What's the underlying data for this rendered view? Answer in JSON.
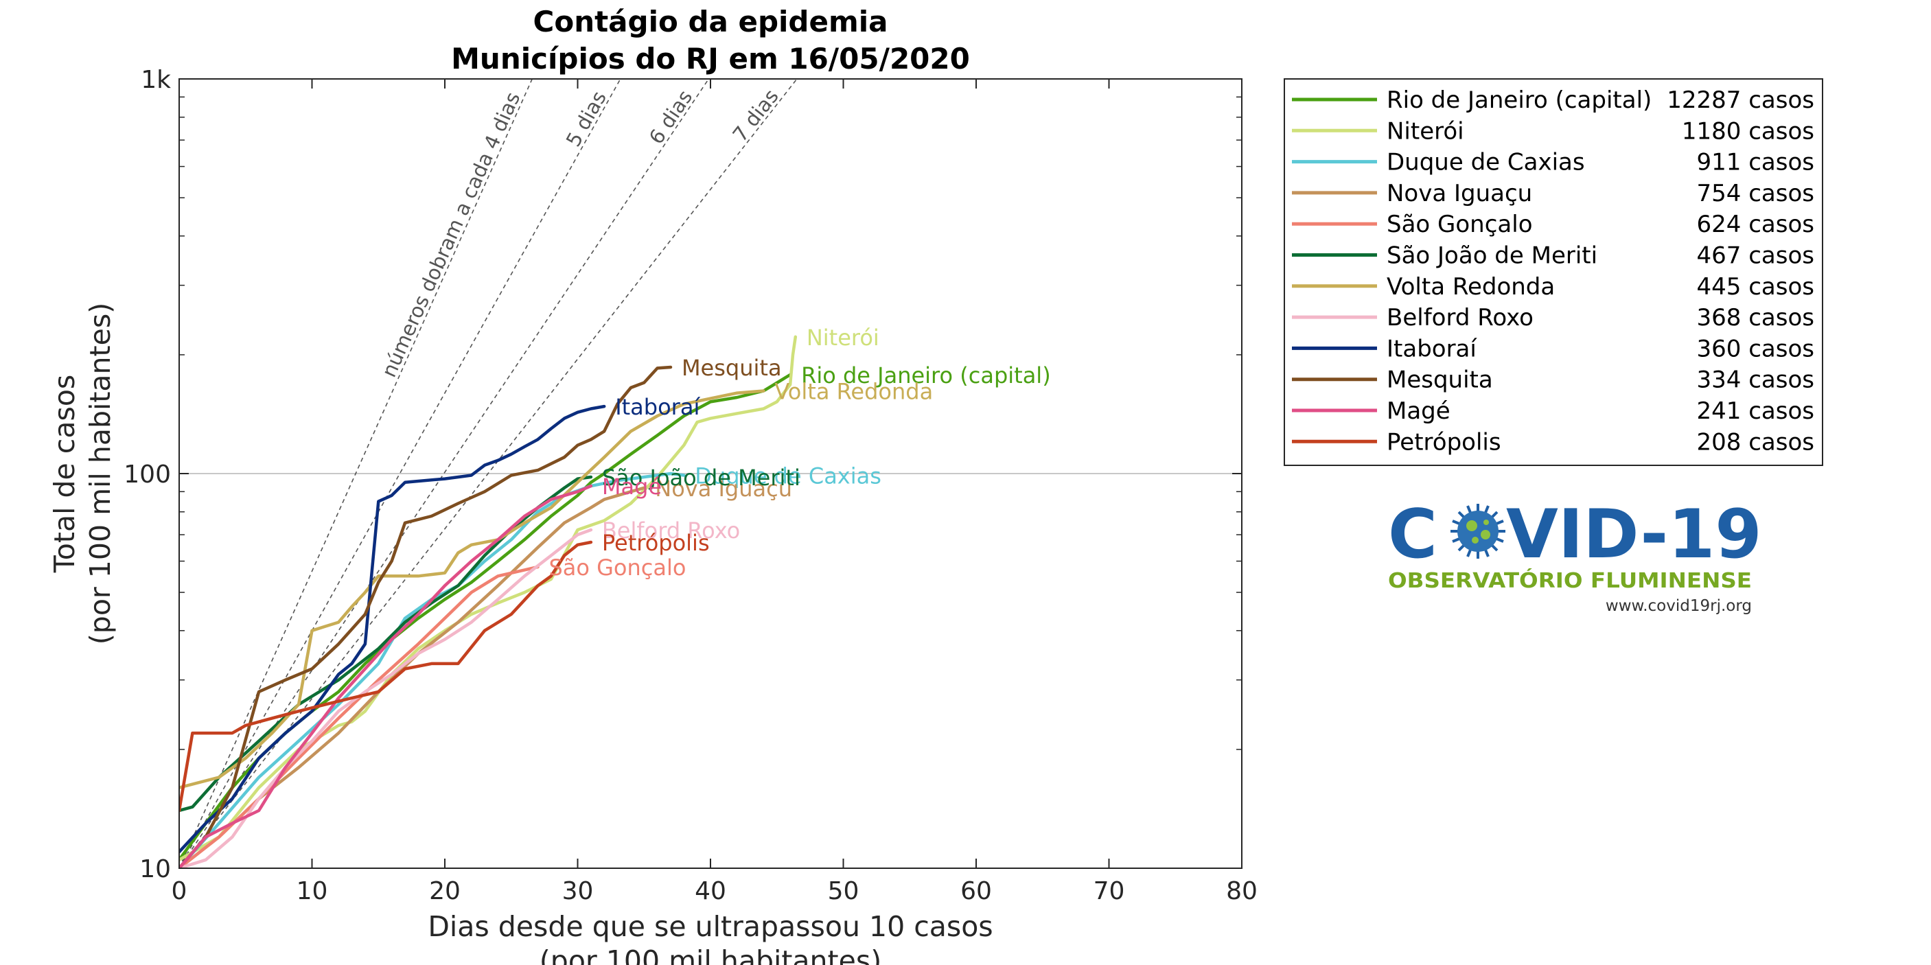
{
  "chart_data": {
    "type": "line",
    "title": [
      "Contágio da epidemia",
      "Municípios do RJ em 16/05/2020"
    ],
    "xlabel": [
      "Dias desde que se ultrapassou 10 casos",
      "(por 100 mil habitantes)"
    ],
    "ylabel": [
      "Total de casos",
      "(por 100 mil habitantes)"
    ],
    "xlim": [
      0,
      80
    ],
    "ylim": [
      10,
      1000
    ],
    "yscale": "log",
    "xticks": [
      0,
      10,
      20,
      30,
      40,
      50,
      60,
      70,
      80
    ],
    "yticks": [
      {
        "value": 10,
        "label": "10"
      },
      {
        "value": 100,
        "label": "100"
      },
      {
        "value": 1000,
        "label": "1k"
      }
    ],
    "grid": "horizontal line at 100",
    "legend_position": "outside-right",
    "doubling_lines": [
      {
        "days": 4,
        "label": "números dobram a cada 4 dias"
      },
      {
        "days": 5,
        "label": "5 dias"
      },
      {
        "days": 6,
        "label": "6 dias"
      },
      {
        "days": 7,
        "label": "7 dias"
      }
    ],
    "series": [
      {
        "name": "Rio de Janeiro (capital)",
        "cases": "12287 casos",
        "color": "#4aa012",
        "end_label": "Rio de Janeiro (capital)",
        "points": [
          [
            0,
            10.5
          ],
          [
            2,
            13
          ],
          [
            4,
            16
          ],
          [
            6,
            19
          ],
          [
            8,
            22
          ],
          [
            10,
            25
          ],
          [
            12,
            28
          ],
          [
            14,
            33
          ],
          [
            16,
            38
          ],
          [
            18,
            43
          ],
          [
            20,
            48
          ],
          [
            22,
            53
          ],
          [
            24,
            60
          ],
          [
            26,
            68
          ],
          [
            28,
            78
          ],
          [
            30,
            88
          ],
          [
            31,
            95
          ],
          [
            32,
            100
          ],
          [
            34,
            112
          ],
          [
            36,
            125
          ],
          [
            38,
            140
          ],
          [
            40,
            152
          ],
          [
            42,
            156
          ],
          [
            44,
            162
          ],
          [
            46,
            178
          ]
        ]
      },
      {
        "name": "Niterói",
        "cases": "1180 casos",
        "color": "#cfe07a",
        "end_label": "Niterói",
        "points": [
          [
            0,
            10.5
          ],
          [
            3,
            12
          ],
          [
            6,
            16
          ],
          [
            9,
            20
          ],
          [
            12,
            23
          ],
          [
            13,
            23.5
          ],
          [
            14,
            25
          ],
          [
            16,
            31
          ],
          [
            18,
            36
          ],
          [
            20,
            40
          ],
          [
            22,
            44
          ],
          [
            24,
            47
          ],
          [
            26,
            50
          ],
          [
            28,
            54
          ],
          [
            30,
            72
          ],
          [
            32,
            76
          ],
          [
            34,
            84
          ],
          [
            36,
            98
          ],
          [
            38,
            118
          ],
          [
            39,
            135
          ],
          [
            40,
            138
          ],
          [
            42,
            142
          ],
          [
            44,
            146
          ],
          [
            45,
            152
          ],
          [
            46,
            168
          ],
          [
            46.2,
            200
          ],
          [
            46.4,
            222
          ]
        ]
      },
      {
        "name": "Duque de Caxias",
        "cases": "911 casos",
        "color": "#5bc8d6",
        "end_label": "Duque de Caxias",
        "points": [
          [
            0,
            10
          ],
          [
            3,
            13
          ],
          [
            6,
            17
          ],
          [
            9,
            21
          ],
          [
            12,
            26
          ],
          [
            15,
            33
          ],
          [
            17,
            43
          ],
          [
            19,
            48
          ],
          [
            21,
            52
          ],
          [
            23,
            60
          ],
          [
            25,
            68
          ],
          [
            27,
            80
          ],
          [
            29,
            88
          ],
          [
            31,
            93
          ],
          [
            33,
            96
          ],
          [
            35,
            98
          ],
          [
            37,
            100
          ],
          [
            38,
            99
          ]
        ]
      },
      {
        "name": "Nova Iguaçu",
        "cases": "754 casos",
        "color": "#c4925a",
        "end_label": "Nova Iguaçu",
        "points": [
          [
            0,
            10
          ],
          [
            3,
            12
          ],
          [
            6,
            15
          ],
          [
            9,
            18
          ],
          [
            12,
            22
          ],
          [
            15,
            28
          ],
          [
            18,
            35
          ],
          [
            21,
            42
          ],
          [
            24,
            52
          ],
          [
            27,
            65
          ],
          [
            29,
            75
          ],
          [
            31,
            82
          ],
          [
            32,
            86
          ],
          [
            34,
            90
          ],
          [
            35,
            92
          ]
        ]
      },
      {
        "name": "São Gonçalo",
        "cases": "624 casos",
        "color": "#f08070",
        "end_label": "São Gonçalo",
        "points": [
          [
            0,
            10
          ],
          [
            3,
            12
          ],
          [
            6,
            15
          ],
          [
            9,
            19
          ],
          [
            12,
            24
          ],
          [
            15,
            30
          ],
          [
            18,
            37
          ],
          [
            20,
            43
          ],
          [
            22,
            50
          ],
          [
            24,
            55
          ],
          [
            26,
            57
          ],
          [
            27,
            58
          ]
        ]
      },
      {
        "name": "São João de Meriti",
        "cases": "467 casos",
        "color": "#0d6e35",
        "end_label": "São João de Meriti",
        "points": [
          [
            0,
            14
          ],
          [
            1,
            14.3
          ],
          [
            3,
            17
          ],
          [
            6,
            21
          ],
          [
            9,
            26
          ],
          [
            12,
            30
          ],
          [
            15,
            36
          ],
          [
            17,
            42
          ],
          [
            19,
            47
          ],
          [
            21,
            52
          ],
          [
            23,
            62
          ],
          [
            25,
            72
          ],
          [
            27,
            82
          ],
          [
            29,
            92
          ],
          [
            30,
            97
          ],
          [
            31,
            98
          ]
        ]
      },
      {
        "name": "Volta Redonda",
        "cases": "445 casos",
        "color": "#c8ad55",
        "end_label": "Volta Redonda",
        "points": [
          [
            0,
            16
          ],
          [
            3,
            17
          ],
          [
            5,
            19
          ],
          [
            7,
            22
          ],
          [
            9,
            26
          ],
          [
            10,
            40
          ],
          [
            11,
            41
          ],
          [
            12,
            42
          ],
          [
            13,
            46
          ],
          [
            14,
            50
          ],
          [
            15,
            55
          ],
          [
            18,
            55
          ],
          [
            20,
            56
          ],
          [
            21,
            63
          ],
          [
            22,
            66
          ],
          [
            24,
            68
          ],
          [
            26,
            75
          ],
          [
            28,
            82
          ],
          [
            30,
            95
          ],
          [
            32,
            110
          ],
          [
            34,
            128
          ],
          [
            36,
            140
          ],
          [
            38,
            150
          ],
          [
            40,
            155
          ],
          [
            42,
            160
          ],
          [
            44,
            162
          ]
        ]
      },
      {
        "name": "Belford Roxo",
        "cases": "368 casos",
        "color": "#f3b6c8",
        "end_label": "Belford Roxo",
        "points": [
          [
            0,
            10
          ],
          [
            2,
            10.5
          ],
          [
            4,
            12
          ],
          [
            6,
            15
          ],
          [
            8,
            18
          ],
          [
            10,
            21
          ],
          [
            12,
            25
          ],
          [
            14,
            28
          ],
          [
            16,
            31
          ],
          [
            18,
            35
          ],
          [
            20,
            38
          ],
          [
            22,
            42
          ],
          [
            24,
            48
          ],
          [
            26,
            55
          ],
          [
            28,
            62
          ],
          [
            30,
            70
          ],
          [
            31,
            72
          ]
        ]
      },
      {
        "name": "Itaboraí",
        "cases": "360 casos",
        "color": "#0b2d7e",
        "end_label": "Itaboraí",
        "points": [
          [
            0,
            11
          ],
          [
            2,
            13
          ],
          [
            4,
            15
          ],
          [
            6,
            19
          ],
          [
            8,
            22
          ],
          [
            10,
            25
          ],
          [
            12,
            31
          ],
          [
            13,
            33
          ],
          [
            14,
            37
          ],
          [
            15,
            85
          ],
          [
            16,
            88
          ],
          [
            17,
            95
          ],
          [
            20,
            97
          ],
          [
            22,
            99
          ],
          [
            23,
            105
          ],
          [
            24,
            108
          ],
          [
            25,
            112
          ],
          [
            26,
            117
          ],
          [
            27,
            122
          ],
          [
            28,
            130
          ],
          [
            29,
            138
          ],
          [
            30,
            143
          ],
          [
            31,
            146
          ],
          [
            32,
            148
          ]
        ]
      },
      {
        "name": "Mesquita",
        "cases": "334 casos",
        "color": "#7e4e20",
        "end_label": "Mesquita",
        "points": [
          [
            0,
            10
          ],
          [
            2,
            12
          ],
          [
            4,
            16
          ],
          [
            6,
            28
          ],
          [
            8,
            30
          ],
          [
            10,
            32
          ],
          [
            12,
            37
          ],
          [
            14,
            44
          ],
          [
            15,
            53
          ],
          [
            16,
            60
          ],
          [
            17,
            75
          ],
          [
            19,
            78
          ],
          [
            21,
            84
          ],
          [
            23,
            90
          ],
          [
            25,
            99
          ],
          [
            27,
            102
          ],
          [
            29,
            110
          ],
          [
            30,
            118
          ],
          [
            31,
            122
          ],
          [
            32,
            128
          ],
          [
            33,
            150
          ],
          [
            34,
            165
          ],
          [
            35,
            170
          ],
          [
            36,
            185
          ],
          [
            37,
            186
          ]
        ]
      },
      {
        "name": "Magé",
        "cases": "241 casos",
        "color": "#e04e86",
        "end_label": "Magé",
        "points": [
          [
            0,
            10
          ],
          [
            2,
            12
          ],
          [
            4,
            13
          ],
          [
            6,
            14
          ],
          [
            8,
            18
          ],
          [
            10,
            22
          ],
          [
            12,
            27
          ],
          [
            14,
            32
          ],
          [
            16,
            38
          ],
          [
            18,
            44
          ],
          [
            20,
            52
          ],
          [
            22,
            60
          ],
          [
            24,
            68
          ],
          [
            26,
            78
          ],
          [
            28,
            86
          ],
          [
            30,
            90
          ],
          [
            31,
            93
          ]
        ]
      },
      {
        "name": "Petrópolis",
        "cases": "208 casos",
        "color": "#c4401f",
        "end_label": "Petrópolis",
        "points": [
          [
            0,
            14
          ],
          [
            1,
            22
          ],
          [
            2,
            22
          ],
          [
            4,
            22
          ],
          [
            5,
            23
          ],
          [
            7,
            24
          ],
          [
            9,
            25
          ],
          [
            11,
            26
          ],
          [
            13,
            27
          ],
          [
            15,
            28
          ],
          [
            17,
            32
          ],
          [
            19,
            33
          ],
          [
            21,
            33
          ],
          [
            23,
            40
          ],
          [
            25,
            44
          ],
          [
            27,
            52
          ],
          [
            28,
            55
          ],
          [
            29,
            62
          ],
          [
            30,
            66
          ],
          [
            31,
            67
          ]
        ]
      }
    ]
  },
  "logo": {
    "title_left": "C",
    "title_right": "VID-19",
    "subtitle": "OBSERVATÓRIO FLUMINENSE",
    "url": "www.covid19rj.org",
    "title_color": "#1f5fa5",
    "subtitle_color": "#77a822"
  }
}
